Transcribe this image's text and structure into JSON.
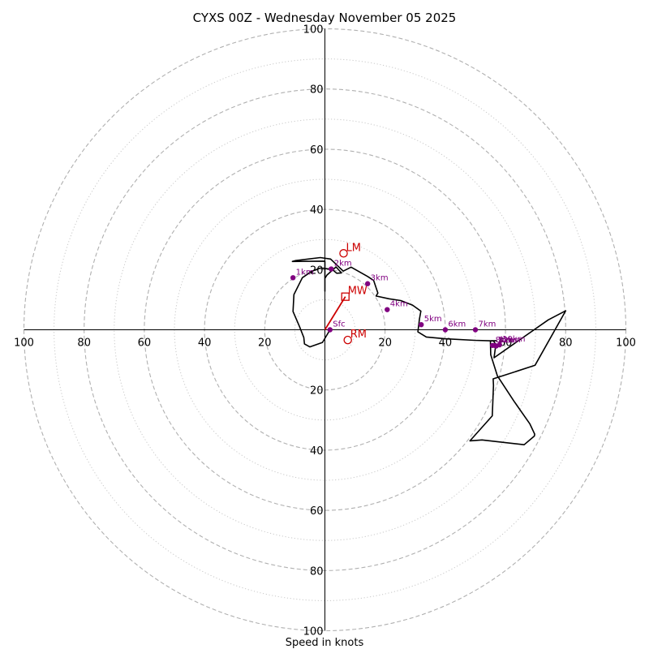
{
  "chart_data": {
    "type": "hodograph",
    "title": "CYXS 00Z - Wednesday November 05 2025",
    "xlabel": "Speed in knots",
    "axis_range": [
      -100,
      100
    ],
    "major_rings": [
      20,
      40,
      60,
      80,
      100
    ],
    "minor_rings": [
      10,
      30,
      50,
      70,
      90
    ],
    "axis_tick_labels": [
      {
        "value": -100,
        "label": "100"
      },
      {
        "value": -80,
        "label": "80"
      },
      {
        "value": -60,
        "label": "60"
      },
      {
        "value": -40,
        "label": "40"
      },
      {
        "value": -20,
        "label": "20"
      },
      {
        "value": 20,
        "label": "20"
      },
      {
        "value": 40,
        "label": "40"
      },
      {
        "value": 60,
        "label": "60"
      },
      {
        "value": 80,
        "label": "80"
      },
      {
        "value": 100,
        "label": "100"
      }
    ],
    "colors": {
      "trace": "#000000",
      "height_points": "#800080",
      "motion": "#cc0000",
      "major_grid": "#b0b0b0",
      "minor_grid": "#c8c8c8"
    },
    "trace": {
      "name": "wind profile",
      "u": [
        1.7,
        -0.8,
        -5.0,
        -6.8,
        -7.0,
        -8.4,
        -10.6,
        -10.3,
        -7.5,
        -4.4,
        -1.5,
        -0.1,
        2.5,
        3.9,
        5.5,
        3.7,
        0.7,
        0.0,
        0.0,
        0.0,
        -10.8,
        -9.7,
        -1.5,
        1.9,
        4.5,
        6.1,
        8.7,
        14.2,
        16.2,
        17.6,
        17.0,
        21.3,
        25.2,
        29.1,
        31.9,
        31.4,
        30.9,
        33.7,
        39.9,
        49.7,
        56.0,
        56.8,
        56.2,
        74.2,
        80.0,
        69.8,
        55.9,
        56.0,
        55.6,
        48.2,
        52.2,
        66.2,
        69.6,
        69.7,
        68.1,
        62.8,
        57.3,
        55.1,
        55.0,
        56.7,
        57.3
      ],
      "v": [
        0.0,
        -4.2,
        -5.7,
        -4.7,
        -2.6,
        1.0,
        6.1,
        11.7,
        17.3,
        19.4,
        20.5,
        20.4,
        20.0,
        18.8,
        18.9,
        20.9,
        18.2,
        17.1,
        12.8,
        22.8,
        22.7,
        23.0,
        24.0,
        23.5,
        21.0,
        19.5,
        20.8,
        17.7,
        16.4,
        12.2,
        11.2,
        10.3,
        9.7,
        8.2,
        6.2,
        3.5,
        -0.7,
        -2.4,
        -3.0,
        -3.5,
        -3.7,
        -4.9,
        -9.3,
        3.3,
        6.3,
        -11.8,
        -16.3,
        -18.5,
        -28.6,
        -36.9,
        -36.6,
        -38.2,
        -35.3,
        -34.7,
        -31.3,
        -23.7,
        -15.3,
        -8.3,
        -3.7,
        -3.6,
        -3.8
      ]
    },
    "height_points": [
      {
        "label": "Sfc",
        "u": 1.7,
        "v": 0.0
      },
      {
        "label": "1km",
        "u": -10.6,
        "v": 17.3
      },
      {
        "label": "2km",
        "u": 2.1,
        "v": 20.2
      },
      {
        "label": "3km",
        "u": 14.2,
        "v": 15.3
      },
      {
        "label": "4km",
        "u": 20.7,
        "v": 6.7
      },
      {
        "label": "5km",
        "u": 32.0,
        "v": 1.7
      },
      {
        "label": "6km",
        "u": 40.0,
        "v": 0.0
      },
      {
        "label": "7km",
        "u": 50.0,
        "v": 0.0
      },
      {
        "label": "8km",
        "u": 55.7,
        "v": -5.2
      },
      {
        "label": "9km",
        "u": 56.9,
        "v": -5.4
      },
      {
        "label": "10km",
        "u": 58.0,
        "v": -5.0
      },
      {
        "label": "12km",
        "u": 56.5,
        "v": -5.2
      }
    ],
    "storm_motion": [
      {
        "label": "LM",
        "marker": "circle",
        "u": 6.2,
        "v": 25.4
      },
      {
        "label": "MW",
        "marker": "square",
        "u": 6.8,
        "v": 11.0
      },
      {
        "label": "RM",
        "marker": "circle",
        "u": 7.6,
        "v": -3.4
      }
    ],
    "motion_vector": {
      "from": [
        0,
        0
      ],
      "to": [
        6.8,
        11.0
      ]
    }
  }
}
